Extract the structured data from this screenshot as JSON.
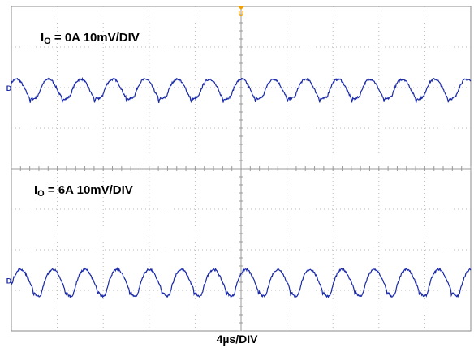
{
  "chart_data": {
    "type": "line",
    "xlabel": "4µs/DIV",
    "grid": true,
    "series": [
      {
        "name_main": "I",
        "name_sub": "O",
        "name_rest": " = 0A 10mV/DIV",
        "channel_marker": "D",
        "period_div": 0.7,
        "amplitude_div": 0.42,
        "x": [
          0.0,
          0.05,
          0.1,
          0.15,
          0.2,
          0.25,
          0.3,
          0.35,
          0.4,
          0.45,
          0.5,
          0.55,
          0.6,
          0.65,
          0.7
        ],
        "y": [
          -0.21,
          -0.05,
          0.08,
          0.16,
          0.2,
          0.21,
          0.18,
          0.1,
          0.0,
          -0.12,
          -0.22,
          -0.27,
          -0.28,
          -0.25,
          -0.21
        ]
      },
      {
        "name_main": "I",
        "name_sub": "O",
        "name_rest": " = 6A 10mV/DIV",
        "channel_marker": "D",
        "period_div": 0.7,
        "amplitude_div": 0.62,
        "x": [
          0.0,
          0.05,
          0.1,
          0.15,
          0.2,
          0.25,
          0.3,
          0.35,
          0.4,
          0.45,
          0.5,
          0.55,
          0.6,
          0.65,
          0.7
        ],
        "y": [
          -0.35,
          -0.12,
          0.05,
          0.17,
          0.24,
          0.27,
          0.25,
          0.18,
          0.07,
          -0.05,
          -0.18,
          -0.3,
          -0.38,
          -0.4,
          -0.35
        ]
      }
    ],
    "trigger_marker": "U"
  },
  "colors": {
    "trace": "#1a2aa8",
    "grid": "#b8b8b8",
    "trigger": "#f0a000",
    "marker": "#1a2aa8"
  }
}
